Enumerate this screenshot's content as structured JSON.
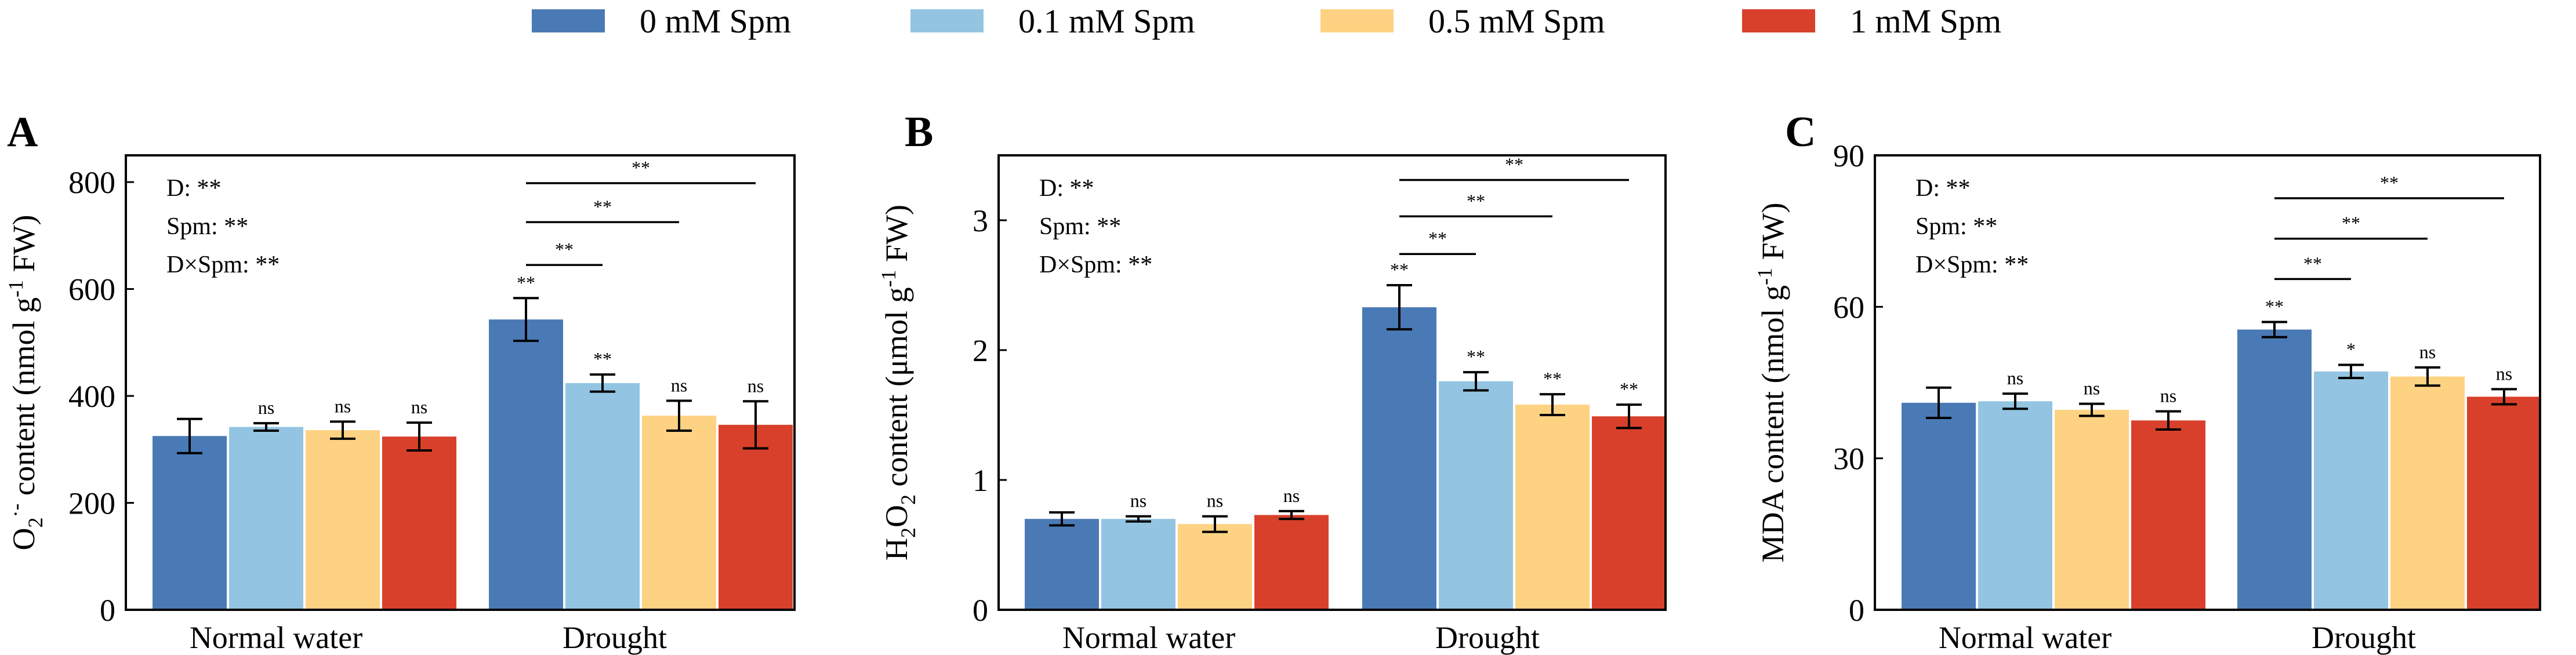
{
  "legend": [
    {
      "label": "0 mM Spm",
      "color": "#4a7ab5"
    },
    {
      "label": "0.1 mM Spm",
      "color": "#93c5e2"
    },
    {
      "label": "0.5 mM Spm",
      "color": "#fdd282"
    },
    {
      "label": "1 mM Spm",
      "color": "#d8402b"
    }
  ],
  "chart_data": [
    {
      "type": "bar",
      "panel": "A",
      "ylabel_parts": [
        "O",
        "2",
        "·-",
        " content (nmol g",
        "-1",
        " FW)"
      ],
      "categories": [
        "Normal water",
        "Drought"
      ],
      "ylim": [
        0,
        850
      ],
      "yticks": [
        0,
        200,
        400,
        600,
        800
      ],
      "series": [
        {
          "name": "0 mM Spm",
          "values": [
            325,
            543
          ],
          "errors": [
            32,
            40
          ],
          "labels": [
            "",
            "**"
          ]
        },
        {
          "name": "0.1 mM Spm",
          "values": [
            342,
            424
          ],
          "errors": [
            7,
            16
          ],
          "labels": [
            "ns",
            "**"
          ]
        },
        {
          "name": "0.5 mM Spm",
          "values": [
            336,
            363
          ],
          "errors": [
            16,
            28
          ],
          "labels": [
            "ns",
            "ns"
          ]
        },
        {
          "name": "1 mM Spm",
          "values": [
            324,
            346
          ],
          "errors": [
            26,
            44
          ],
          "labels": [
            "ns",
            "ns"
          ]
        }
      ],
      "stats_text": [
        "D: **",
        "Spm:  **",
        "D×Spm:  **"
      ],
      "brackets": [
        {
          "from_series": 0,
          "to_series": 1,
          "category": 1,
          "y": 645,
          "label": "**"
        },
        {
          "from_series": 0,
          "to_series": 2,
          "category": 1,
          "y": 725,
          "label": "**"
        },
        {
          "from_series": 0,
          "to_series": 3,
          "category": 1,
          "y": 798,
          "label": "**"
        }
      ]
    },
    {
      "type": "bar",
      "panel": "B",
      "ylabel_parts": [
        "H",
        "2",
        "O",
        "2",
        " content (μmol g",
        "-1",
        " FW)"
      ],
      "categories": [
        "Normal water",
        "Drought"
      ],
      "ylim": [
        0,
        3.5
      ],
      "yticks": [
        0,
        1,
        2,
        3
      ],
      "series": [
        {
          "name": "0 mM Spm",
          "values": [
            0.7,
            2.33
          ],
          "errors": [
            0.05,
            0.17
          ],
          "labels": [
            "",
            "**"
          ]
        },
        {
          "name": "0.1 mM Spm",
          "values": [
            0.7,
            1.76
          ],
          "errors": [
            0.02,
            0.07
          ],
          "labels": [
            "ns",
            "**"
          ]
        },
        {
          "name": "0.5 mM Spm",
          "values": [
            0.66,
            1.58
          ],
          "errors": [
            0.06,
            0.08
          ],
          "labels": [
            "ns",
            "**"
          ]
        },
        {
          "name": "1 mM Spm",
          "values": [
            0.73,
            1.49
          ],
          "errors": [
            0.03,
            0.09
          ],
          "labels": [
            "ns",
            "**"
          ]
        }
      ],
      "stats_text": [
        "D: **",
        "Spm:  **",
        "D×Spm:  **"
      ],
      "brackets": [
        {
          "from_series": 0,
          "to_series": 1,
          "category": 1,
          "y": 2.74,
          "label": "**"
        },
        {
          "from_series": 0,
          "to_series": 2,
          "category": 1,
          "y": 3.03,
          "label": "**"
        },
        {
          "from_series": 0,
          "to_series": 3,
          "category": 1,
          "y": 3.31,
          "label": "**"
        }
      ]
    },
    {
      "type": "bar",
      "panel": "C",
      "ylabel_parts": [
        "MDA content (nmol g",
        "-1",
        " FW)"
      ],
      "categories": [
        "Normal water",
        "Drought"
      ],
      "ylim": [
        0,
        90
      ],
      "yticks": [
        0,
        30,
        60,
        90
      ],
      "series": [
        {
          "name": "0 mM Spm",
          "values": [
            41.0,
            55.5
          ],
          "errors": [
            3.0,
            1.5
          ],
          "labels": [
            "",
            "**"
          ]
        },
        {
          "name": "0.1 mM Spm",
          "values": [
            41.3,
            47.2
          ],
          "errors": [
            1.5,
            1.3
          ],
          "labels": [
            "ns",
            "*"
          ]
        },
        {
          "name": "0.5 mM Spm",
          "values": [
            39.6,
            46.2
          ],
          "errors": [
            1.2,
            1.8
          ],
          "labels": [
            "ns",
            "ns"
          ]
        },
        {
          "name": "1 mM Spm",
          "values": [
            37.5,
            42.2
          ],
          "errors": [
            1.8,
            1.5
          ],
          "labels": [
            "ns",
            "ns"
          ]
        }
      ],
      "stats_text": [
        "D: **",
        "Spm:  **",
        "D×Spm:  **"
      ],
      "brackets": [
        {
          "from_series": 0,
          "to_series": 1,
          "category": 1,
          "y": 65.5,
          "label": "**"
        },
        {
          "from_series": 0,
          "to_series": 2,
          "category": 1,
          "y": 73.5,
          "label": "**"
        },
        {
          "from_series": 0,
          "to_series": 3,
          "category": 1,
          "y": 81.5,
          "label": "**"
        }
      ]
    }
  ]
}
